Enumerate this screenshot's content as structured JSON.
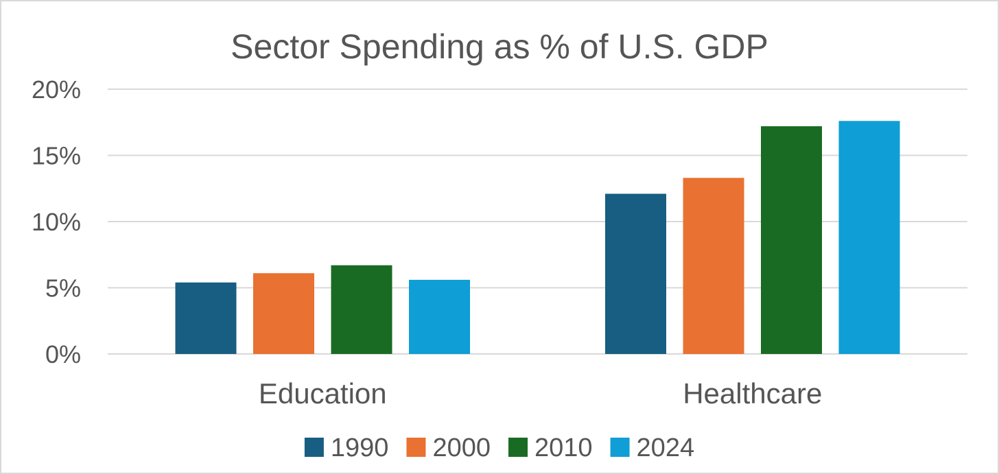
{
  "chart_data": {
    "type": "bar",
    "title": "Sector Spending as % of U.S. GDP",
    "xlabel": "",
    "ylabel": "",
    "categories": [
      "Education",
      "Healthcare"
    ],
    "series": [
      {
        "name": "1990",
        "color": "#175e82",
        "values": [
          5.4,
          12.1
        ]
      },
      {
        "name": "2000",
        "color": "#e97131",
        "values": [
          6.1,
          13.3
        ]
      },
      {
        "name": "2010",
        "color": "#196b24",
        "values": [
          6.7,
          17.2
        ]
      },
      {
        "name": "2024",
        "color": "#0f9ed5",
        "values": [
          5.6,
          17.6
        ]
      }
    ],
    "ylim": [
      0,
      20
    ],
    "yticks": [
      0,
      5,
      10,
      15,
      20
    ],
    "ytick_labels": [
      "0%",
      "5%",
      "10%",
      "15%",
      "20%"
    ],
    "grid": true,
    "legend_position": "bottom"
  }
}
